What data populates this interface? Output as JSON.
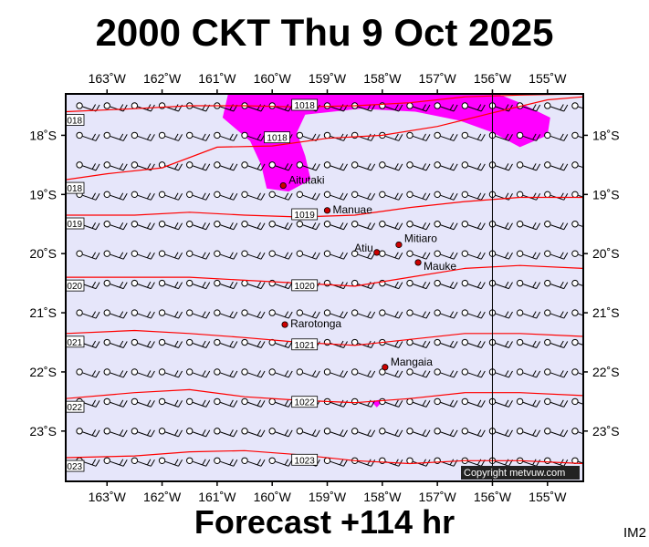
{
  "title": "2000 CKT Thu 9 Oct 2025",
  "footer": "Forecast +114 hr",
  "image_label": "IM2",
  "copyright": "Copyright metvuw.com",
  "colors": {
    "ocean": "#e6e6fa",
    "rain": "#ff00ff",
    "isobar": "#ff0000",
    "place_dot": "#cc0000",
    "frame": "#000000"
  },
  "map_data": {
    "lon_range": [
      -163.75,
      -154.35
    ],
    "lat_range": [
      -23.85,
      -17.3
    ],
    "lon_ticks": [
      {
        "value": -163,
        "label": "163˚W"
      },
      {
        "value": -162,
        "label": "162˚W"
      },
      {
        "value": -161,
        "label": "161˚W"
      },
      {
        "value": -160,
        "label": "160˚W"
      },
      {
        "value": -159,
        "label": "159˚W"
      },
      {
        "value": -158,
        "label": "158˚W"
      },
      {
        "value": -157,
        "label": "157˚W"
      },
      {
        "value": -156,
        "label": "156˚W"
      },
      {
        "value": -155,
        "label": "155˚W"
      }
    ],
    "lat_ticks": [
      {
        "value": -18,
        "label": "18˚S"
      },
      {
        "value": -19,
        "label": "19˚S"
      },
      {
        "value": -20,
        "label": "20˚S"
      },
      {
        "value": -21,
        "label": "21˚S"
      },
      {
        "value": -22,
        "label": "22˚S"
      },
      {
        "value": -23,
        "label": "23˚S"
      }
    ],
    "meridian_line": -156,
    "places": [
      {
        "name": "Aitutaki",
        "lon": -159.8,
        "lat": -18.85
      },
      {
        "name": "Manuae",
        "lon": -159.0,
        "lat": -19.27
      },
      {
        "name": "Mitiaro",
        "lon": -157.7,
        "lat": -19.85
      },
      {
        "name": "Atiu",
        "lon": -158.1,
        "lat": -19.98
      },
      {
        "name": "Mauke",
        "lon": -157.35,
        "lat": -20.15
      },
      {
        "name": "Rarotonga",
        "lon": -159.77,
        "lat": -21.2
      },
      {
        "name": "Mangaia",
        "lon": -157.95,
        "lat": -21.92
      }
    ],
    "isobars": [
      {
        "label": "1018",
        "points": [
          [
            -163.75,
            -17.6
          ],
          [
            -162.5,
            -17.55
          ],
          [
            -161.5,
            -17.5
          ],
          [
            -160.5,
            -17.5
          ],
          [
            -159.5,
            -17.52
          ],
          [
            -158.5,
            -17.5
          ],
          [
            -157.5,
            -17.45
          ],
          [
            -156.5,
            -17.35
          ],
          [
            -155.5,
            -17.32
          ],
          [
            -154.35,
            -17.3
          ]
        ]
      },
      {
        "label": "1018",
        "points": [
          [
            -163.75,
            -18.75
          ],
          [
            -163.0,
            -18.65
          ],
          [
            -162.0,
            -18.55
          ],
          [
            -161.0,
            -18.2
          ],
          [
            -160.0,
            -18.18
          ],
          [
            -159.0,
            -18.05
          ],
          [
            -158.0,
            -18.0
          ],
          [
            -157.0,
            -17.85
          ],
          [
            -156.0,
            -17.62
          ],
          [
            -155.0,
            -17.4
          ],
          [
            -154.35,
            -17.35
          ]
        ]
      },
      {
        "label": "1019",
        "points": [
          [
            -163.75,
            -19.35
          ],
          [
            -162.5,
            -19.35
          ],
          [
            -161.5,
            -19.3
          ],
          [
            -160.5,
            -19.35
          ],
          [
            -159.5,
            -19.38
          ],
          [
            -158.5,
            -19.35
          ],
          [
            -157.5,
            -19.22
          ],
          [
            -156.5,
            -19.12
          ],
          [
            -155.5,
            -19.05
          ],
          [
            -154.35,
            -19.05
          ]
        ]
      },
      {
        "label": "1020",
        "points": [
          [
            -163.75,
            -20.4
          ],
          [
            -162.5,
            -20.4
          ],
          [
            -161.5,
            -20.4
          ],
          [
            -160.5,
            -20.45
          ],
          [
            -159.5,
            -20.5
          ],
          [
            -158.5,
            -20.55
          ],
          [
            -157.5,
            -20.4
          ],
          [
            -156.5,
            -20.25
          ],
          [
            -155.5,
            -20.2
          ],
          [
            -154.35,
            -20.25
          ]
        ]
      },
      {
        "label": "1021",
        "points": [
          [
            -163.75,
            -21.35
          ],
          [
            -162.5,
            -21.3
          ],
          [
            -161.5,
            -21.35
          ],
          [
            -160.5,
            -21.42
          ],
          [
            -159.5,
            -21.5
          ],
          [
            -158.5,
            -21.55
          ],
          [
            -157.5,
            -21.45
          ],
          [
            -156.5,
            -21.35
          ],
          [
            -155.5,
            -21.35
          ],
          [
            -154.35,
            -21.4
          ]
        ]
      },
      {
        "label": "1022",
        "points": [
          [
            -163.75,
            -22.45
          ],
          [
            -162.5,
            -22.35
          ],
          [
            -161.5,
            -22.3
          ],
          [
            -160.5,
            -22.42
          ],
          [
            -159.5,
            -22.48
          ],
          [
            -158.5,
            -22.52
          ],
          [
            -157.5,
            -22.45
          ],
          [
            -156.5,
            -22.35
          ],
          [
            -155.5,
            -22.35
          ],
          [
            -154.35,
            -22.4
          ]
        ]
      },
      {
        "label": "1023",
        "points": [
          [
            -163.75,
            -23.45
          ],
          [
            -162.5,
            -23.42
          ],
          [
            -161.5,
            -23.35
          ],
          [
            -160.5,
            -23.33
          ],
          [
            -159.5,
            -23.4
          ],
          [
            -158.5,
            -23.5
          ],
          [
            -157.5,
            -23.55
          ],
          [
            -156.5,
            -23.5
          ],
          [
            -155.5,
            -23.5
          ],
          [
            -154.35,
            -23.55
          ]
        ]
      }
    ],
    "rain_areas": [
      [
        [
          -160.8,
          -17.3
        ],
        [
          -160.9,
          -17.7
        ],
        [
          -160.4,
          -18.1
        ],
        [
          -160.2,
          -18.5
        ],
        [
          -160.1,
          -18.9
        ],
        [
          -159.7,
          -18.95
        ],
        [
          -159.3,
          -18.75
        ],
        [
          -159.4,
          -18.35
        ],
        [
          -159.55,
          -17.95
        ],
        [
          -159.4,
          -17.65
        ],
        [
          -158.4,
          -17.55
        ],
        [
          -157.4,
          -17.6
        ],
        [
          -156.6,
          -17.75
        ],
        [
          -156.0,
          -17.95
        ],
        [
          -155.5,
          -18.2
        ],
        [
          -155.0,
          -18.0
        ],
        [
          -154.95,
          -17.7
        ],
        [
          -155.5,
          -17.45
        ],
        [
          -155.9,
          -17.3
        ]
      ],
      [
        [
          -158.2,
          -22.5
        ],
        [
          -157.95,
          -22.45
        ],
        [
          -158.1,
          -22.6
        ]
      ]
    ],
    "wind_barb_grid": {
      "lon_start": -163.5,
      "lon_step": 0.5,
      "count_lon": 19,
      "lat_start": -17.5,
      "lat_step": 0.5,
      "count_lat": 13
    }
  }
}
